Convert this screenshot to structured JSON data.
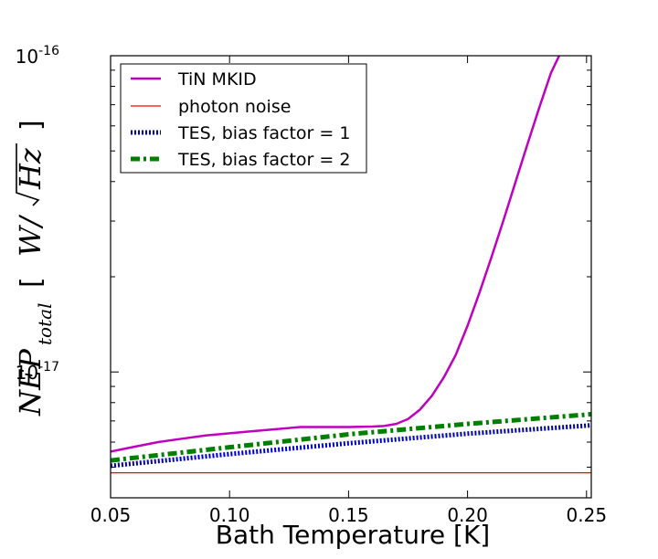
{
  "chart_data": {
    "type": "line",
    "title": "",
    "xlabel": "Bath Temperature [K]",
    "ylabel": {
      "main": "NEP",
      "subscript": "total",
      "unit_prefix": "W/",
      "unit_root": "Hz",
      "open_bracket": "[",
      "close_bracket": "]"
    },
    "xlim": [
      0.05,
      0.252
    ],
    "ylim": [
      4e-18,
      1e-16
    ],
    "yscale": "log",
    "xticks": [
      "0.05",
      "0.10",
      "0.15",
      "0.20",
      "0.25"
    ],
    "xtick_values": [
      0.05,
      0.1,
      0.15,
      0.2,
      0.25
    ],
    "yticks": [
      {
        "value": 1e-16,
        "base": "10",
        "exp": "-16"
      },
      {
        "value": 1e-17,
        "base": "10",
        "exp": "-17"
      }
    ],
    "legend_position": "top-left",
    "series": [
      {
        "name": "TiN MKID",
        "color": "#bf00bf",
        "style": "solid",
        "x": [
          0.05,
          0.06,
          0.07,
          0.08,
          0.09,
          0.1,
          0.11,
          0.12,
          0.13,
          0.14,
          0.15,
          0.16,
          0.165,
          0.17,
          0.175,
          0.18,
          0.185,
          0.19,
          0.195,
          0.2,
          0.205,
          0.21,
          0.215,
          0.22,
          0.225,
          0.23,
          0.235,
          0.2385
        ],
        "y": [
          5.6e-18,
          5.8e-18,
          6e-18,
          6.15e-18,
          6.3e-18,
          6.4e-18,
          6.5e-18,
          6.6e-18,
          6.7e-18,
          6.7e-18,
          6.7e-18,
          6.72e-18,
          6.75e-18,
          6.85e-18,
          7.1e-18,
          7.6e-18,
          8.4e-18,
          9.6e-18,
          1.13e-17,
          1.4e-17,
          1.78e-17,
          2.3e-17,
          3e-17,
          3.95e-17,
          5.2e-17,
          6.8e-17,
          8.8e-17,
          1e-16
        ]
      },
      {
        "name": "photon noise",
        "color": "#ff0000",
        "style": "thin",
        "x": [
          0.05,
          0.252
        ],
        "y": [
          4.8e-18,
          4.8e-18
        ]
      },
      {
        "name": "TES, bias factor = 1",
        "color": "#0000bf",
        "style": "dotted",
        "x": [
          0.05,
          0.1,
          0.15,
          0.2,
          0.252
        ],
        "y": [
          5.05e-18,
          5.5e-18,
          5.95e-18,
          6.38e-18,
          6.78e-18
        ]
      },
      {
        "name": "TES, bias factor = 2",
        "color": "#007f00",
        "style": "dashdot",
        "x": [
          0.05,
          0.1,
          0.15,
          0.2,
          0.252
        ],
        "y": [
          5.25e-18,
          5.78e-18,
          6.35e-18,
          6.85e-18,
          7.35e-18
        ]
      }
    ]
  }
}
